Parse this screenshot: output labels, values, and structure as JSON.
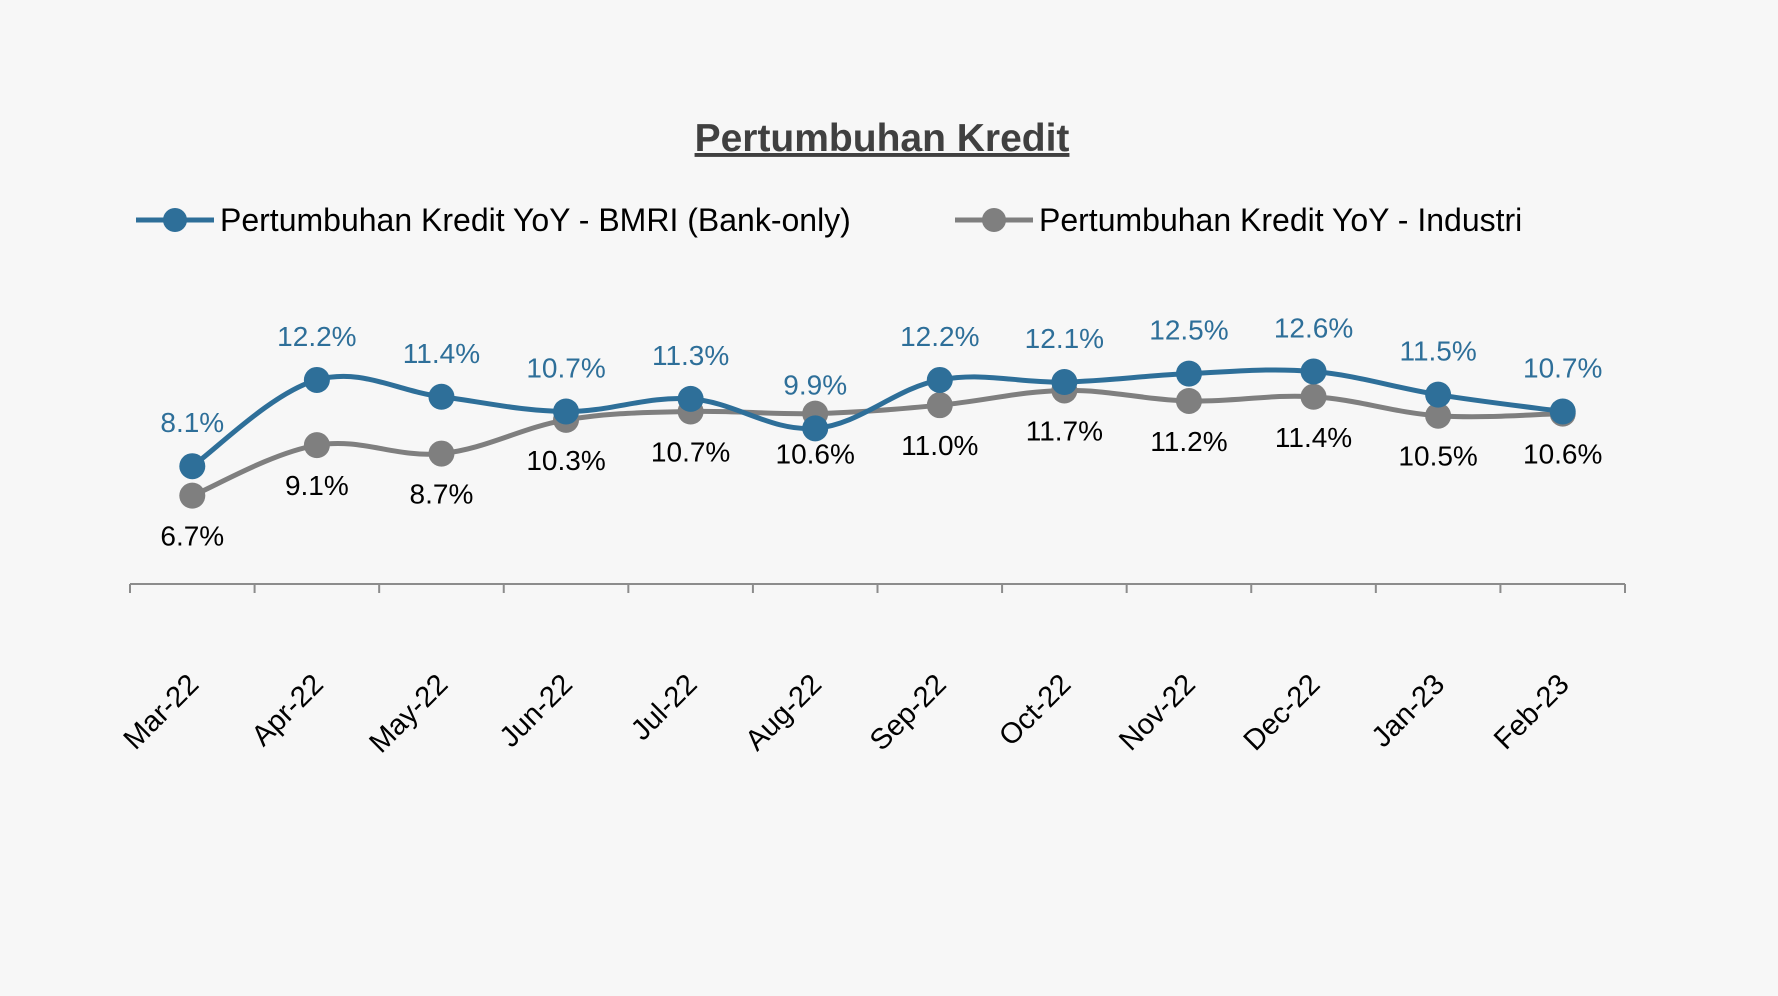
{
  "chart_data": {
    "type": "line",
    "title": "Pertumbuhan Kredit",
    "xlabel": "",
    "ylabel": "",
    "categories": [
      "Mar-22",
      "Apr-22",
      "May-22",
      "Jun-22",
      "Jul-22",
      "Aug-22",
      "Sep-22",
      "Oct-22",
      "Nov-22",
      "Dec-22",
      "Jan-23",
      "Feb-23"
    ],
    "series": [
      {
        "name": "Pertumbuhan Kredit YoY - BMRI (Bank-only)",
        "color": "#2e6f99",
        "label_color": "#2e6f99",
        "values": [
          8.1,
          12.2,
          11.4,
          10.7,
          11.3,
          9.9,
          12.2,
          12.1,
          12.5,
          12.6,
          11.5,
          10.7
        ],
        "labels": [
          "8.1%",
          "12.2%",
          "11.4%",
          "10.7%",
          "11.3%",
          "9.9%",
          "12.2%",
          "12.1%",
          "12.5%",
          "12.6%",
          "11.5%",
          "10.7%"
        ]
      },
      {
        "name": "Pertumbuhan Kredit YoY - Industri",
        "color": "#7f7f7f",
        "label_color": "#000000",
        "values": [
          6.7,
          9.1,
          8.7,
          10.3,
          10.7,
          10.6,
          11.0,
          11.7,
          11.2,
          11.4,
          10.5,
          10.6
        ],
        "labels": [
          "6.7%",
          "9.1%",
          "8.7%",
          "10.3%",
          "10.7%",
          "10.6%",
          "11.0%",
          "11.7%",
          "11.2%",
          "11.4%",
          "10.5%",
          "10.6%"
        ]
      }
    ],
    "ylim": [
      2.5,
      16.0
    ],
    "grid": false,
    "legend_position": "top",
    "smooth": true
  }
}
